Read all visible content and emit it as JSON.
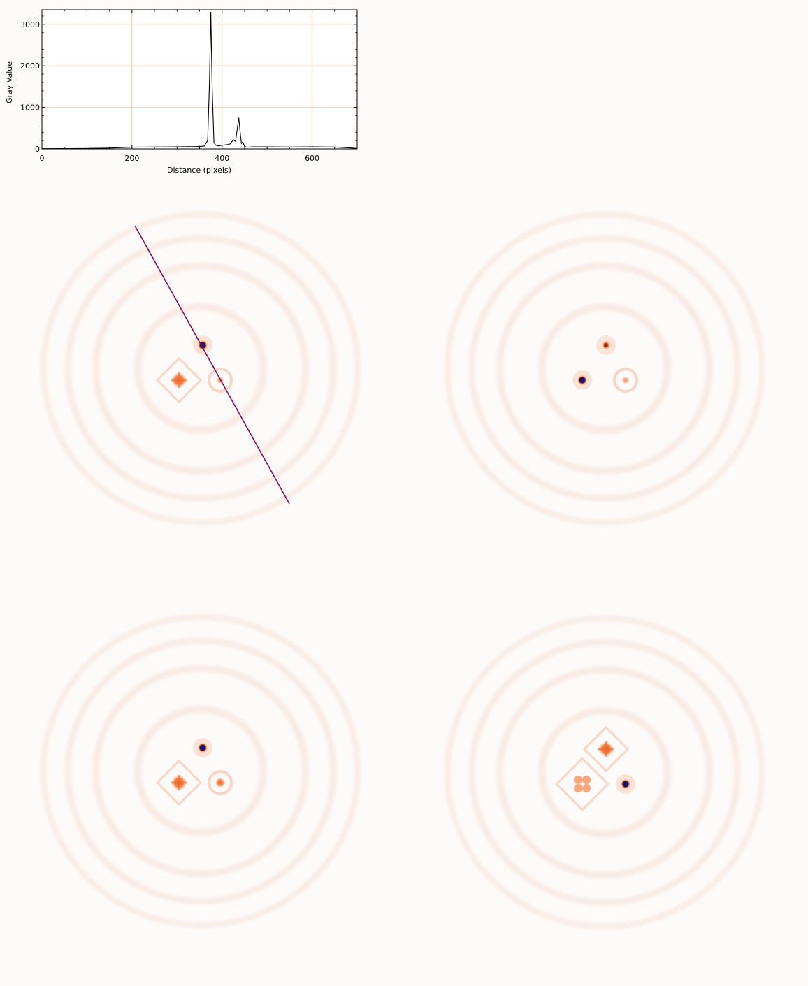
{
  "chart_data": {
    "type": "line",
    "title": "",
    "xlabel": "Distance (pixels)",
    "ylabel": "Gray Value",
    "xlim": [
      0,
      700
    ],
    "ylim": [
      0,
      3350
    ],
    "x_ticks": [
      0,
      200,
      400,
      600
    ],
    "y_ticks": [
      0,
      1000,
      2000,
      3000
    ],
    "grid": true,
    "series": [
      {
        "x": [
          0,
          50,
          100,
          150,
          200,
          250,
          300,
          340,
          360,
          368,
          372,
          375,
          378,
          382,
          386,
          392,
          400,
          410,
          418,
          425,
          430,
          434,
          437,
          440,
          443,
          446,
          450,
          455,
          470,
          500,
          550,
          600,
          650,
          690,
          700
        ],
        "y": [
          5,
          8,
          10,
          20,
          40,
          45,
          50,
          55,
          65,
          200,
          1600,
          3300,
          1500,
          150,
          90,
          70,
          90,
          100,
          120,
          220,
          180,
          500,
          750,
          420,
          130,
          170,
          60,
          40,
          50,
          50,
          45,
          50,
          45,
          20,
          10
        ]
      }
    ],
    "line_color": "#000000",
    "grid_color": "#f2cbb3"
  },
  "colormap": {
    "name": "orange-hot inverted",
    "low": "#fdfbfa",
    "mid": "#f26a1b",
    "high": "#1a1270"
  },
  "line_selection_color": "#7d0a5b",
  "panels": [
    {
      "id": "top-left",
      "line_selection": true,
      "spots": [
        {
          "pos": [
            290,
            494
          ],
          "intensity": "max"
        },
        {
          "pos": [
            256,
            544
          ],
          "intensity": "high",
          "shape": "diamond"
        },
        {
          "pos": [
            315,
            544
          ],
          "intensity": "low",
          "shape": "ring"
        }
      ]
    },
    {
      "id": "top-right",
      "line_selection": false,
      "spots": [
        {
          "pos": [
            867,
            494
          ],
          "intensity": "high"
        },
        {
          "pos": [
            833,
            544
          ],
          "intensity": "max"
        },
        {
          "pos": [
            895,
            544
          ],
          "intensity": "low",
          "shape": "ring"
        }
      ]
    },
    {
      "id": "bottom-left",
      "line_selection": false,
      "spots": [
        {
          "pos": [
            290,
            1070
          ],
          "intensity": "max"
        },
        {
          "pos": [
            256,
            1120
          ],
          "intensity": "high",
          "shape": "diamond"
        },
        {
          "pos": [
            315,
            1120
          ],
          "intensity": "medium",
          "shape": "ring"
        }
      ]
    },
    {
      "id": "bottom-right",
      "line_selection": false,
      "spots": [
        {
          "pos": [
            867,
            1072
          ],
          "intensity": "high",
          "shape": "diamond"
        },
        {
          "pos": [
            833,
            1122
          ],
          "intensity": "medium",
          "shape": "quad"
        },
        {
          "pos": [
            895,
            1122
          ],
          "intensity": "max"
        }
      ]
    }
  ]
}
